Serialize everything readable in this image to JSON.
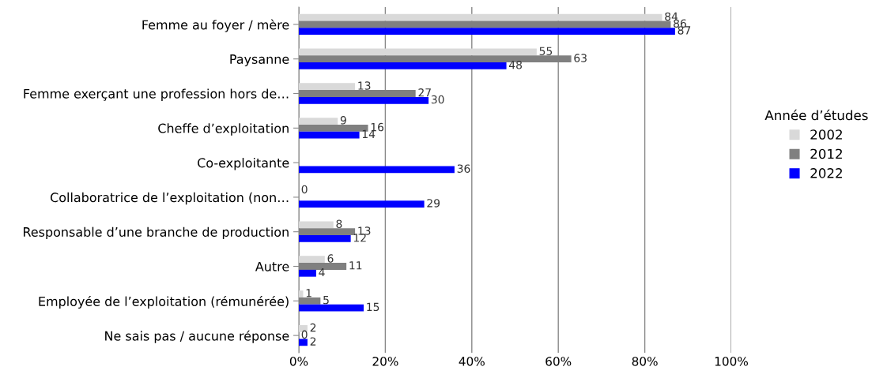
{
  "chart_data": {
    "type": "bar",
    "orientation": "horizontal",
    "categories": [
      "Femme au foyer / mère",
      "Paysanne",
      "Femme exerçant une profession hors de…",
      "Cheffe d’exploitation",
      "Co-exploitante",
      "Collaboratrice de l’exploitation (non…",
      "Responsable d’une branche de production",
      "Autre",
      "Employée de l’exploitation (rémunérée)",
      "Ne sais pas / aucune réponse"
    ],
    "series": [
      {
        "name": "2002",
        "color": "#d9d9d9",
        "values": [
          84,
          55,
          13,
          9,
          null,
          0,
          8,
          6,
          1,
          2
        ],
        "value_labels": [
          "84",
          "55",
          "13",
          "9",
          null,
          "0",
          "8",
          "6",
          "1",
          "2"
        ]
      },
      {
        "name": "2012",
        "color": "#808080",
        "values": [
          86,
          63,
          27,
          16,
          null,
          null,
          13,
          11,
          5,
          0
        ],
        "value_labels": [
          "86",
          "63",
          "27",
          "16",
          null,
          null,
          "13",
          "11",
          "5",
          "0"
        ]
      },
      {
        "name": "2022",
        "color": "#0000ff",
        "values": [
          87,
          48,
          30,
          14,
          36,
          29,
          12,
          4,
          15,
          2
        ],
        "value_labels": [
          "87",
          "48",
          "30",
          "14",
          "36",
          "29",
          "12",
          "4",
          "15",
          "2"
        ]
      }
    ],
    "legend_title": "Année d’études",
    "legend": "right",
    "xlim": [
      0,
      100
    ],
    "xticks": [
      {
        "value": 0,
        "label": "0%"
      },
      {
        "value": 20,
        "label": "20%"
      },
      {
        "value": 40,
        "label": "40%"
      },
      {
        "value": 60,
        "label": "60%"
      },
      {
        "value": 80,
        "label": "80%"
      },
      {
        "value": 100,
        "label": "100%"
      }
    ],
    "grid": "x"
  }
}
